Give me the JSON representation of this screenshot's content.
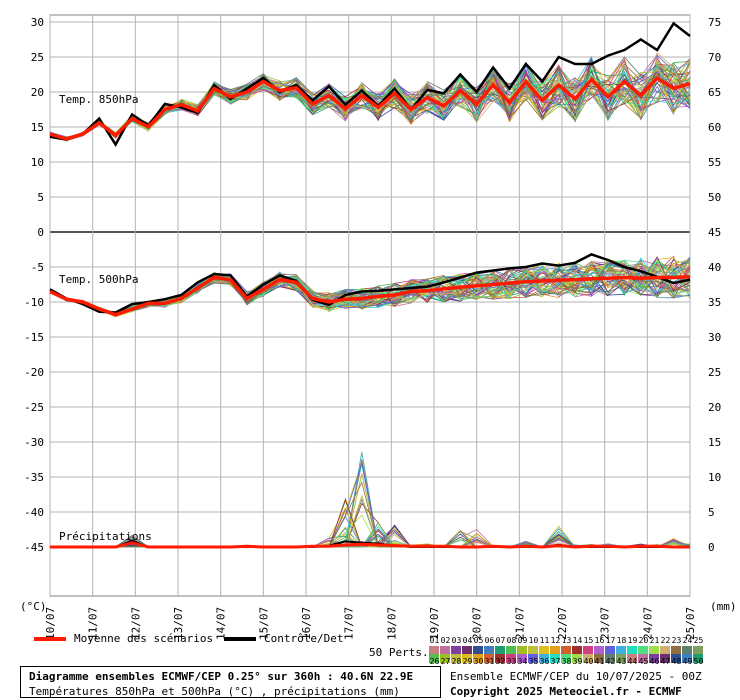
{
  "chart_data": {
    "type": "line",
    "dates": [
      "10/07",
      "11/07",
      "12/07",
      "13/07",
      "14/07",
      "15/07",
      "16/07",
      "17/07",
      "18/07",
      "19/07",
      "20/07",
      "21/07",
      "22/07",
      "23/07",
      "24/07",
      "25/07"
    ],
    "left_axis": {
      "ticks": [
        30,
        25,
        20,
        15,
        10,
        5,
        0,
        -5,
        -10,
        -15,
        -20,
        -25,
        -30,
        -35,
        -40,
        -45
      ],
      "unit": "(°C)"
    },
    "right_axis_temp": {
      "ticks": [
        75,
        70,
        65,
        60,
        55,
        50,
        45,
        40,
        35,
        30,
        25,
        20,
        15,
        10,
        5,
        0
      ],
      "unit": "(mm)"
    },
    "panels": {
      "t850": {
        "label": "Temp. 850hPa"
      },
      "t500": {
        "label": "Temp. 500hPa"
      },
      "precip": {
        "label": "Précipitations"
      }
    },
    "t850_mean": [
      14,
      13.3,
      14,
      15.6,
      13.8,
      16.2,
      15,
      17.5,
      18.2,
      17.3,
      20.5,
      19.3,
      20,
      21.5,
      20.2,
      20.6,
      18.3,
      19.5,
      17.6,
      19.5,
      17.8,
      19.8,
      17.5,
      19.2,
      18,
      20.2,
      18.3,
      21,
      18.5,
      21.5,
      18.8,
      21,
      19,
      21.8,
      19.3,
      21.5,
      19.5,
      22,
      20.5,
      21.2
    ],
    "t850_control": [
      13.6,
      13.2,
      14,
      16.2,
      12.5,
      16.8,
      15.2,
      18.3,
      17.8,
      17,
      21,
      19,
      20.5,
      22,
      20,
      21,
      18.8,
      20.8,
      18.2,
      20.2,
      18,
      20.5,
      17.5,
      20.3,
      19.8,
      22.5,
      20,
      23.5,
      20.5,
      24,
      21.5,
      25,
      24,
      24,
      25.2,
      26,
      27.5,
      26,
      29.8,
      28
    ],
    "t500_mean": [
      -8.5,
      -9.6,
      -10,
      -11,
      -11.8,
      -11,
      -10.2,
      -10.2,
      -9.5,
      -8,
      -6.5,
      -6.8,
      -9.5,
      -8.2,
      -6.8,
      -7.2,
      -9.5,
      -10,
      -9.6,
      -9.5,
      -9.2,
      -9,
      -8.5,
      -8.4,
      -8.1,
      -7.9,
      -7.7,
      -7.5,
      -7.3,
      -7.1,
      -7,
      -6.9,
      -6.8,
      -6.7,
      -6.6,
      -6.5,
      -6.6,
      -6.5,
      -6.5,
      -6.4
    ],
    "t500_control": [
      -8.2,
      -9.5,
      -10.3,
      -11.4,
      -11.5,
      -10.3,
      -10,
      -9.6,
      -9,
      -7.2,
      -6,
      -6.2,
      -9.2,
      -7.5,
      -6.2,
      -7,
      -9.7,
      -10.4,
      -9,
      -8.5,
      -8.4,
      -8.2,
      -8,
      -7.8,
      -7.2,
      -6.5,
      -5.8,
      -5.5,
      -5.2,
      -5,
      -4.5,
      -4.8,
      -4.4,
      -3.2,
      -4,
      -5,
      -5.6,
      -6.4,
      -7.3,
      -6.8
    ],
    "precip_mean_mm": [
      0,
      0,
      0,
      0,
      0,
      0.6,
      0,
      0,
      0,
      0,
      0,
      0,
      0.1,
      0,
      0,
      0,
      0.1,
      0.1,
      0.3,
      0.4,
      0.3,
      0.2,
      0.1,
      0.1,
      0.1,
      0,
      0,
      0.1,
      0,
      0.1,
      0,
      0.2,
      0,
      0.1,
      0.1,
      0,
      0.1,
      0.1,
      0,
      0
    ],
    "precip_control_mm": [
      0,
      0,
      0,
      0,
      0,
      0.9,
      0,
      0,
      0,
      0,
      0,
      0,
      0,
      0,
      0,
      0,
      0,
      0.2,
      0.8,
      0.6,
      0.5,
      0.2,
      0,
      0,
      0,
      0,
      0,
      0,
      0,
      0,
      0,
      0.3,
      0,
      0,
      0,
      0,
      0,
      0,
      0,
      0
    ],
    "precip_max_member_mm": [
      0,
      0,
      0,
      0,
      0,
      1.8,
      0,
      0,
      0,
      0,
      0,
      0,
      0.2,
      0,
      0,
      0,
      0.2,
      1.5,
      7,
      15.5,
      3.5,
      3.5,
      0.3,
      0.5,
      0.2,
      3,
      2.5,
      0.1,
      0,
      0.8,
      0,
      3,
      0.3,
      0.4,
      0.6,
      0.1,
      0.5,
      0.4,
      1.3,
      0.5
    ],
    "legend": {
      "mean": "Moyenne des scénarios",
      "control": "Contrôle/Det",
      "perts": "50 Perts."
    },
    "colors": {
      "mean": "#ff1a00",
      "control": "#000000",
      "grid": "#b3b3b3"
    },
    "member_colors": [
      "#c87f7f",
      "#bf6f9f",
      "#7f3f9f",
      "#6f2f6f",
      "#2f4f8f",
      "#3f7fbf",
      "#1f9f6f",
      "#4fbf4f",
      "#9fbf1f",
      "#bfbf3f",
      "#dfbf1f",
      "#e3a01f",
      "#d0602f",
      "#9f2f2f",
      "#cf3f7f",
      "#af5fcf",
      "#5f5fdf",
      "#3fafdf",
      "#1fdfbf",
      "#4fdf7f",
      "#9fdf4f",
      "#cfaf6f",
      "#8f6f3f",
      "#5f7f6f",
      "#7f9f5f"
    ],
    "ensemble_labels_top": [
      "01",
      "02",
      "03",
      "04",
      "05",
      "06",
      "07",
      "08",
      "09",
      "10",
      "11",
      "12",
      "13",
      "14",
      "15",
      "16",
      "17",
      "18",
      "19",
      "20",
      "21",
      "22",
      "23",
      "24",
      "25"
    ],
    "ensemble_labels_bottom": [
      "26",
      "27",
      "28",
      "29",
      "30",
      "31",
      "32",
      "33",
      "34",
      "35",
      "36",
      "37",
      "38",
      "39",
      "40",
      "41",
      "42",
      "43",
      "44",
      "45",
      "46",
      "47",
      "48",
      "49",
      "50"
    ]
  },
  "title_box": {
    "line1": "Diagramme ensembles ECMWF/CEP 0.25° sur 360h : 40.6N 22.9E",
    "line2": "Températures 850hPa et 500hPa (°C) , précipitations (mm)"
  },
  "info": {
    "run": "Ensemble ECMWF/CEP du 10/07/2025 - 00Z",
    "copyright": "Copyright 2025 Meteociel.fr - ECMWF"
  }
}
